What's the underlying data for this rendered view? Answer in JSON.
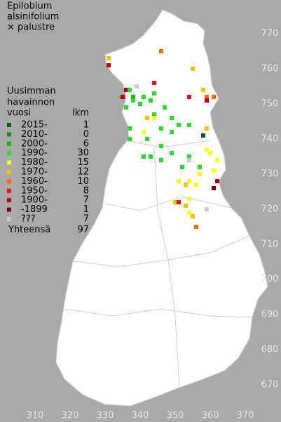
{
  "title": [
    "Epilobium",
    "alsinifolium",
    "× palustre"
  ],
  "legend": {
    "heading": [
      "Uusimman",
      "havainnon"
    ],
    "period_header": "vuosi",
    "count_header": "lkm",
    "rows": [
      {
        "label": "2015-",
        "count": 1,
        "color": "#006400"
      },
      {
        "label": "2010-",
        "count": 0,
        "color": "#1a8a1a"
      },
      {
        "label": "2000-",
        "count": 6,
        "color": "#00c000"
      },
      {
        "label": "1990-",
        "count": 30,
        "color": "#22e022"
      },
      {
        "label": "1980-",
        "count": 15,
        "color": "#ffff00"
      },
      {
        "label": "1970-",
        "count": 12,
        "color": "#ffc000"
      },
      {
        "label": "1960-",
        "count": 10,
        "color": "#ff6a00"
      },
      {
        "label": "1950-",
        "count": 8,
        "color": "#e81010"
      },
      {
        "label": "1900-",
        "count": 7,
        "color": "#c00000"
      },
      {
        "label": "-1899",
        "count": 1,
        "color": "#800000"
      },
      {
        "label": "???",
        "count": 7,
        "color": "#cccccc"
      }
    ],
    "total_label": "Yhteensä",
    "total": 97
  },
  "x_axis": {
    "ticks": [
      310,
      320,
      330,
      340,
      350,
      360,
      370
    ]
  },
  "y_axis": {
    "ticks": [
      670,
      680,
      690,
      700,
      710,
      720,
      730,
      740,
      750,
      760,
      770
    ]
  },
  "points": [
    {
      "x": 331,
      "y": 763,
      "period": 5
    },
    {
      "x": 331,
      "y": 761,
      "period": 8
    },
    {
      "x": 346,
      "y": 765,
      "period": 6
    },
    {
      "x": 355,
      "y": 760,
      "period": 5
    },
    {
      "x": 339,
      "y": 755,
      "period": 10
    },
    {
      "x": 344,
      "y": 756,
      "period": 7
    },
    {
      "x": 336,
      "y": 754,
      "period": 8
    },
    {
      "x": 337,
      "y": 754,
      "period": 3
    },
    {
      "x": 335,
      "y": 752,
      "period": 8
    },
    {
      "x": 341,
      "y": 752,
      "period": 3
    },
    {
      "x": 344,
      "y": 753,
      "period": 3
    },
    {
      "x": 338,
      "y": 752,
      "period": 2
    },
    {
      "x": 354,
      "y": 752,
      "period": 7
    },
    {
      "x": 358,
      "y": 754,
      "period": 5
    },
    {
      "x": 359,
      "y": 752,
      "period": 6
    },
    {
      "x": 359,
      "y": 751,
      "period": 8
    },
    {
      "x": 361,
      "y": 752,
      "period": 6
    },
    {
      "x": 336,
      "y": 749,
      "period": 3
    },
    {
      "x": 338,
      "y": 751,
      "period": 3
    },
    {
      "x": 340,
      "y": 750,
      "period": 3
    },
    {
      "x": 343,
      "y": 751,
      "period": 3
    },
    {
      "x": 344,
      "y": 747,
      "period": 3
    },
    {
      "x": 347,
      "y": 749,
      "period": 3
    },
    {
      "x": 342,
      "y": 746,
      "period": 5
    },
    {
      "x": 344,
      "y": 746,
      "period": 4
    },
    {
      "x": 349,
      "y": 746,
      "period": 3
    },
    {
      "x": 351,
      "y": 744,
      "period": 3
    },
    {
      "x": 354,
      "y": 744,
      "period": 3
    },
    {
      "x": 337,
      "y": 743,
      "period": 3
    },
    {
      "x": 341,
      "y": 742,
      "period": 4
    },
    {
      "x": 346,
      "y": 743,
      "period": 3
    },
    {
      "x": 349,
      "y": 742,
      "period": 3
    },
    {
      "x": 358,
      "y": 741,
      "period": 0
    },
    {
      "x": 359,
      "y": 743,
      "period": 5
    },
    {
      "x": 337,
      "y": 740,
      "period": 3
    },
    {
      "x": 342,
      "y": 740,
      "period": 3
    },
    {
      "x": 346,
      "y": 738,
      "period": 3
    },
    {
      "x": 341,
      "y": 735,
      "period": 3
    },
    {
      "x": 343,
      "y": 735,
      "period": 3
    },
    {
      "x": 346,
      "y": 734,
      "period": 3
    },
    {
      "x": 349,
      "y": 736,
      "period": 3
    },
    {
      "x": 354,
      "y": 735,
      "period": 3
    },
    {
      "x": 354,
      "y": 734,
      "period": 10
    },
    {
      "x": 359,
      "y": 737,
      "period": 4
    },
    {
      "x": 360,
      "y": 736,
      "period": 4
    },
    {
      "x": 362,
      "y": 734,
      "period": 4
    },
    {
      "x": 361,
      "y": 731,
      "period": 4
    },
    {
      "x": 352,
      "y": 732,
      "period": 3
    },
    {
      "x": 357,
      "y": 732,
      "period": 3
    },
    {
      "x": 357,
      "y": 730,
      "period": 4
    },
    {
      "x": 351,
      "y": 728,
      "period": 4
    },
    {
      "x": 353,
      "y": 727,
      "period": 5
    },
    {
      "x": 354,
      "y": 728,
      "period": 4
    },
    {
      "x": 356,
      "y": 727,
      "period": 4
    },
    {
      "x": 362,
      "y": 728,
      "period": 8
    },
    {
      "x": 361,
      "y": 726,
      "period": 9
    },
    {
      "x": 350,
      "y": 722,
      "period": 5
    },
    {
      "x": 354,
      "y": 723,
      "period": 4
    },
    {
      "x": 353,
      "y": 721,
      "period": 5
    },
    {
      "x": 359,
      "y": 720,
      "period": 10
    },
    {
      "x": 351,
      "y": 722,
      "period": 7
    },
    {
      "x": 354,
      "y": 719,
      "period": 4
    },
    {
      "x": 355,
      "y": 718,
      "period": 5
    },
    {
      "x": 356,
      "y": 715,
      "period": 6
    }
  ]
}
